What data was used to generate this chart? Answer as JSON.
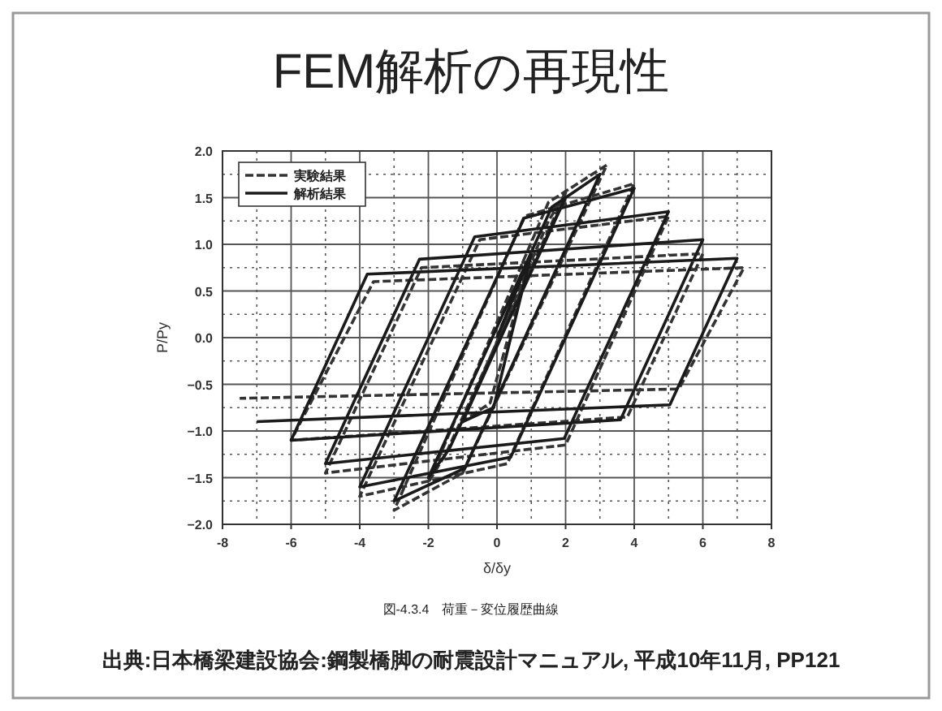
{
  "chart_data": {
    "type": "line",
    "title": "FEM解析の再現性",
    "xlabel": "δ/δy",
    "ylabel": "P/Py",
    "annotations": [
      "図-4.3.4　荷重－変位履歴曲線",
      "出典:日本橋梁建設協会:鋼製橋脚の耐震設計マニュアル, 平成10年11月, PP121"
    ],
    "xlim": [
      -8,
      8
    ],
    "ylim": [
      -2.0,
      2.0
    ],
    "xticks": [
      -8,
      {
        "value": -7,
        "label": null
      },
      -6,
      {
        "value": -5,
        "label": null
      },
      -4,
      {
        "value": -3,
        "label": null
      },
      -2,
      {
        "value": -1,
        "label": null
      },
      0,
      {
        "value": 1,
        "label": null
      },
      2,
      {
        "value": 3,
        "label": null
      },
      4,
      {
        "value": 5,
        "label": null
      },
      6,
      {
        "value": 7,
        "label": null
      },
      8
    ],
    "yticks": [
      {
        "value": -2.0,
        "label": "−2.0"
      },
      {
        "value": -1.75,
        "label": null
      },
      {
        "value": -1.5,
        "label": "−1.5"
      },
      {
        "value": -1.25,
        "label": null
      },
      {
        "value": -1.0,
        "label": "−1.0"
      },
      {
        "value": -0.75,
        "label": null
      },
      {
        "value": -0.5,
        "label": "−0.5"
      },
      {
        "value": -0.25,
        "label": null
      },
      {
        "value": 0,
        "label": "0.0"
      },
      {
        "value": 0.25,
        "label": null
      },
      {
        "value": 0.5,
        "label": "0.5"
      },
      {
        "value": 0.75,
        "label": null
      },
      {
        "value": 1.0,
        "label": "1.0"
      },
      {
        "value": 1.25,
        "label": null
      },
      {
        "value": 1.5,
        "label": "1.5"
      },
      {
        "value": 1.75,
        "label": null
      },
      {
        "value": 2.0,
        "label": "2.0"
      }
    ],
    "grid": true,
    "legend": "top left",
    "marker": "none",
    "series": [
      {
        "name": "実験結果",
        "color": "#333333",
        "line_style": "dashed",
        "x": [
          0,
          1,
          -0.2,
          -1,
          1.5,
          2,
          -1.5,
          -2,
          1.5,
          3.2,
          -1.0,
          -3,
          0.8,
          4,
          0.3,
          -4,
          -0.5,
          5,
          2.0,
          -5,
          -2.2,
          6,
          3.8,
          -6,
          -3.6,
          7.2,
          5.3,
          -7.5
        ],
        "values": [
          0,
          0.9,
          -0.7,
          -0.9,
          1.25,
          1.55,
          -1.25,
          -1.55,
          1.45,
          1.85,
          -1.45,
          -1.85,
          1.3,
          1.65,
          -1.35,
          -1.7,
          1.05,
          1.3,
          -1.15,
          -1.45,
          0.75,
          0.9,
          -0.85,
          -1.1,
          0.6,
          0.75,
          -0.55,
          -0.65
        ]
      },
      {
        "name": "解析結果",
        "color": "#1a1a1a",
        "line_style": "solid",
        "x": [
          0,
          1,
          -0.1,
          -1,
          1.6,
          2,
          -1.4,
          -2,
          1.6,
          3,
          -0.94,
          -3,
          0.79,
          4,
          0.4,
          -4,
          -0.65,
          5,
          1.96,
          -5,
          -2.26,
          6,
          3.6,
          -6,
          -3.78,
          7,
          5.04,
          -7
        ],
        "values": [
          0,
          0.9,
          -0.75,
          -0.9,
          1.2,
          1.5,
          -1.2,
          -1.5,
          1.4,
          1.75,
          -1.4,
          -1.75,
          1.28,
          1.6,
          -1.28,
          -1.6,
          1.08,
          1.35,
          -1.08,
          -1.35,
          0.84,
          1.05,
          -0.88,
          -1.1,
          0.68,
          0.85,
          -0.72,
          -0.9
        ]
      }
    ]
  }
}
